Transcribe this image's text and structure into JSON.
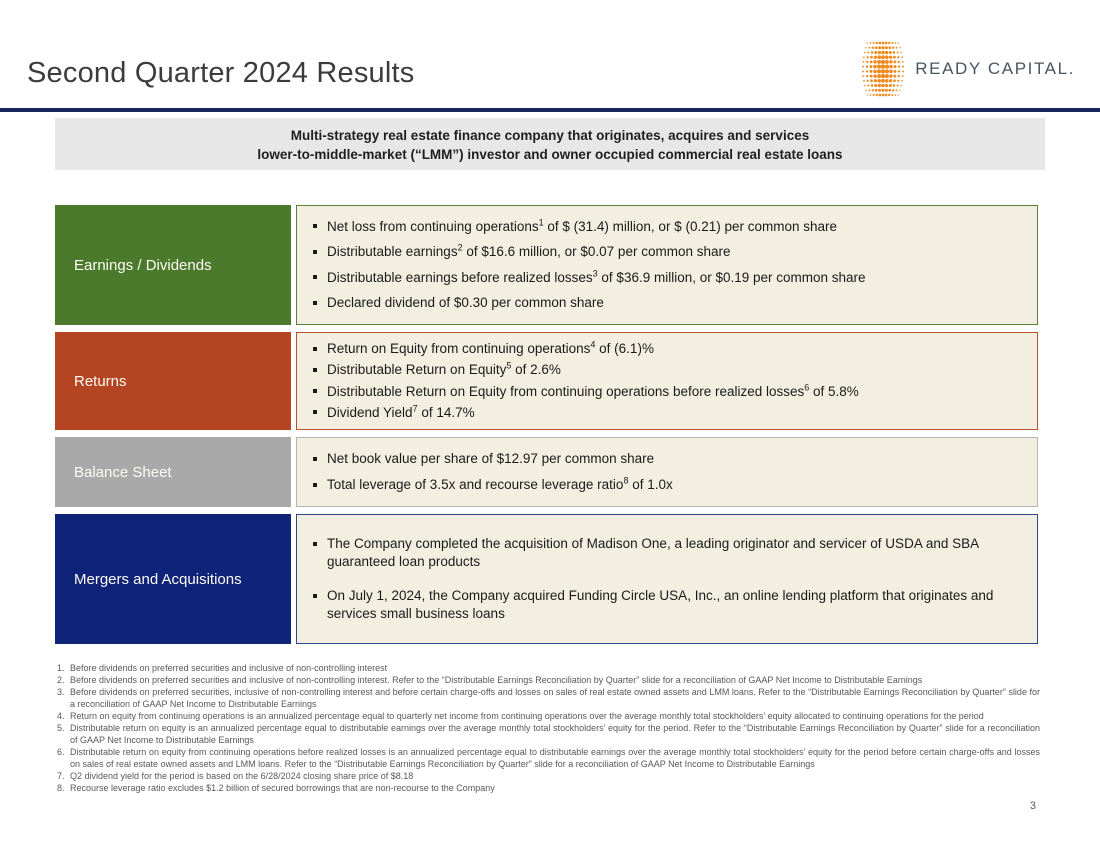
{
  "slide": {
    "title": "Second Quarter 2024 Results",
    "page_number": "3",
    "logo": {
      "text": "READY CAPITAL.",
      "dot_color": "#EE8A1E",
      "text_color": "#4A545E"
    },
    "banner": {
      "line1": "Multi-strategy real estate finance company that originates, acquires and services",
      "line2": "lower-to-middle-market (“LMM”) investor and owner occupied commercial real estate loans"
    },
    "sections": [
      {
        "label": "Earnings / Dividends",
        "color": "#4B7A2C",
        "border": "#5C8038",
        "bullets": [
          "Net loss from continuing operations^1^ of $ (31.4) million, or $ (0.21) per common share",
          "Distributable earnings^2^ of $16.6 million, or $0.07 per common share",
          "Distributable earnings before realized losses^3^ of $36.9 million, or $0.19 per common share",
          "Declared dividend of $0.30 per common share"
        ]
      },
      {
        "label": "Returns",
        "color": "#B54522",
        "border": "#BE4F2B",
        "bullets": [
          "Return on Equity from continuing operations^4^ of (6.1)%",
          "Distributable Return on Equity^5^ of 2.6%",
          "Distributable Return on Equity from continuing operations before realized losses^6^ of 5.8%",
          "Dividend Yield^7^ of 14.7%"
        ]
      },
      {
        "label": "Balance Sheet",
        "color": "#A9A9A9",
        "border": "#B5B5B5",
        "bullets": [
          "Net book value per share of $12.97 per common share",
          "Total leverage of 3.5x and recourse leverage ratio^8^ of 1.0x"
        ]
      },
      {
        "label": "Mergers and Acquisitions",
        "color": "#0F2478",
        "border": "#2F4693",
        "bullets": [
          "The Company completed the acquisition of Madison One, a leading originator and servicer of USDA and SBA guaranteed loan products",
          "On July 1, 2024, the Company acquired Funding Circle USA, Inc., an online lending platform that originates and services small business loans"
        ]
      }
    ],
    "footnotes": [
      "Before dividends on preferred securities and inclusive of non-controlling interest",
      "Before dividends on preferred securities and inclusive of non-controlling interest. Refer to the “Distributable Earnings Reconciliation by Quarter” slide for a reconciliation of GAAP Net Income to Distributable Earnings",
      "Before dividends on preferred securities, inclusive of non-controlling interest and before certain charge-offs and losses on sales of real estate owned assets and LMM loans. Refer to the “Distributable Earnings Reconciliation by Quarter” slide for a reconciliation of GAAP Net Income to Distributable Earnings",
      "Return on equity from continuing operations is an annualized percentage equal to quarterly net income from continuing operations over the average monthly total stockholders’ equity allocated to continuing operations for the period",
      "Distributable return on equity is an annualized percentage equal to distributable earnings over the average monthly total stockholders’ equity for the period. Refer to the “Distributable Earnings Reconciliation by Quarter” slide for a reconciliation of GAAP Net Income to Distributable Earnings",
      "Distributable return on equity from continuing operations before realized losses is an annualized percentage equal to distributable earnings over the average monthly total stockholders’ equity for the period before certain charge-offs and losses on sales of real estate owned assets and LMM loans. Refer to the “Distributable Earnings Reconciliation by Quarter” slide for a reconciliation of GAAP Net Income to Distributable Earnings",
      "Q2 dividend yield for the period is based on the 6/28/2024 closing share price of $8.18",
      "Recourse leverage ratio excludes $1.2 billion of secured borrowings that are non-recourse to the Company"
    ]
  }
}
